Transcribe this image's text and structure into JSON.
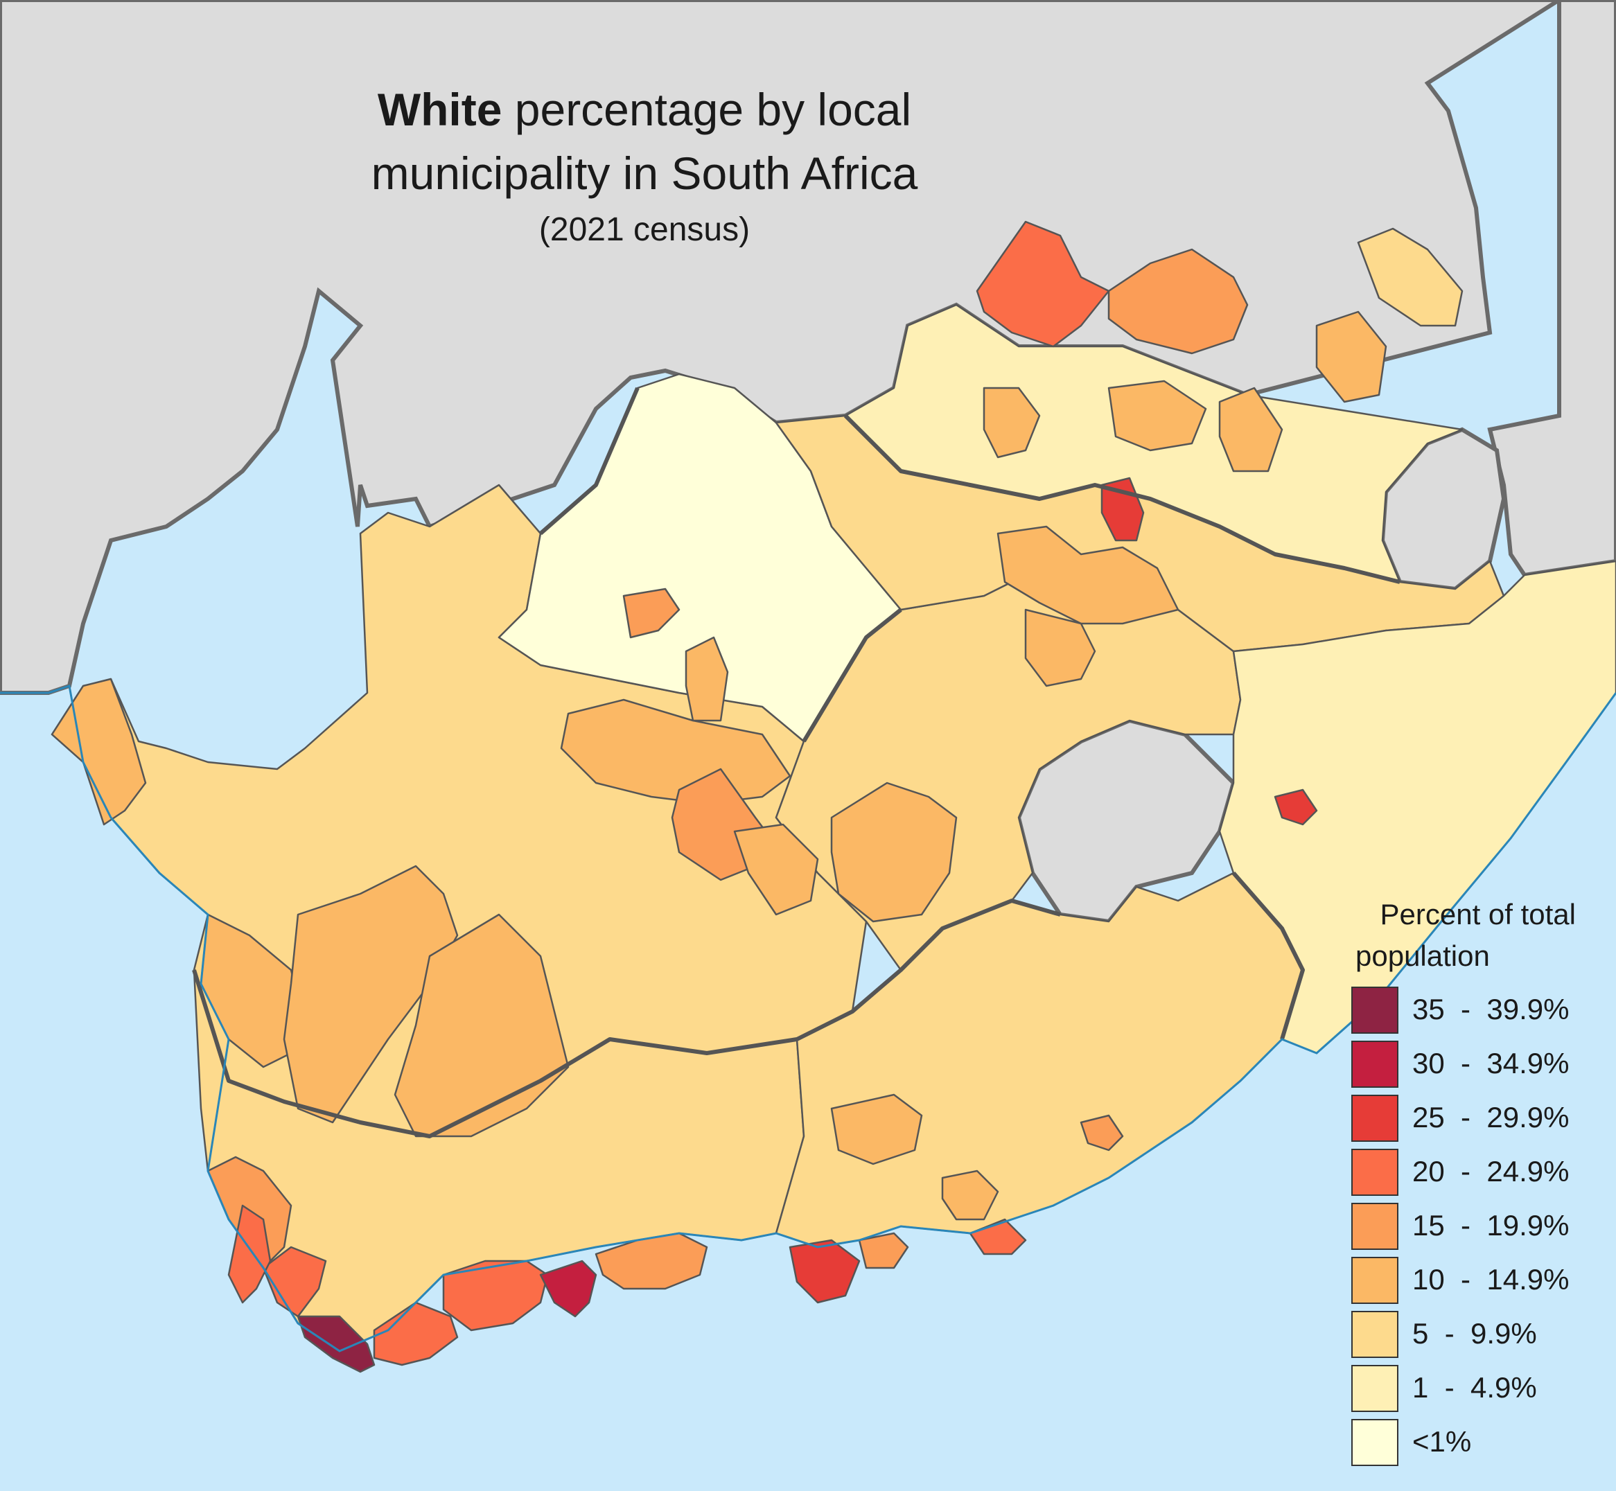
{
  "title": {
    "bold_word": "White",
    "line1_rest": " percentage by local",
    "line2": "municipality in South Africa",
    "line3": "(2021 census)"
  },
  "legend": {
    "title_line1": "Percent of total",
    "title_line2": "population",
    "items": [
      {
        "label": "35  -  39.9%",
        "color": "#8e2343"
      },
      {
        "label": "30  -  34.9%",
        "color": "#c41f3f"
      },
      {
        "label": "25  -  29.9%",
        "color": "#e63c37"
      },
      {
        "label": "20  -  24.9%",
        "color": "#fb6d48"
      },
      {
        "label": "15  -  19.9%",
        "color": "#fb9d57"
      },
      {
        "label": "10  -  14.9%",
        "color": "#fbb865"
      },
      {
        "label": "5  -  9.9%",
        "color": "#fdda8d"
      },
      {
        "label": "1  -  4.9%",
        "color": "#fef0b5"
      },
      {
        "label": "<1%",
        "color": "#ffffd9"
      }
    ]
  },
  "colors": {
    "sea": "#c9e9fb",
    "neighbor_land": "#dcdcdc",
    "border": "#5a5a5a",
    "municipality_line": "#555555"
  }
}
